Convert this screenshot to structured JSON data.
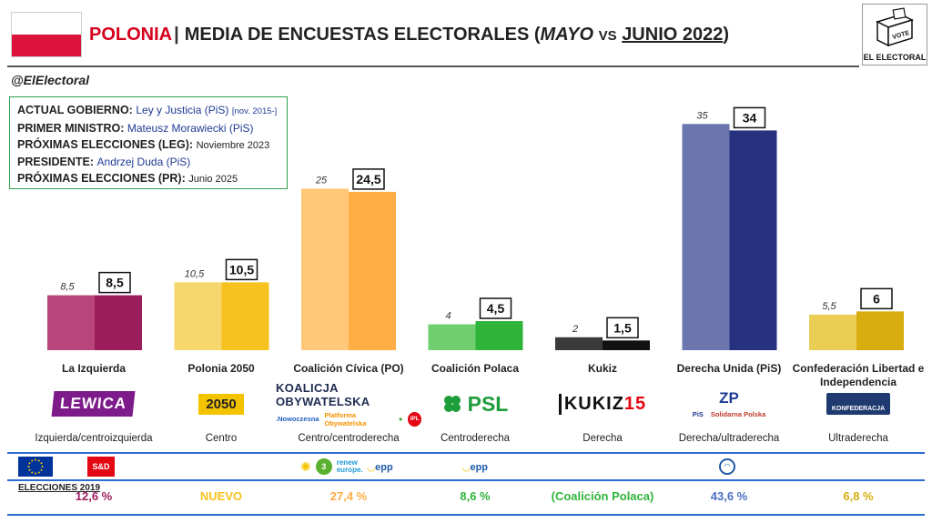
{
  "header": {
    "country": "POLONIA",
    "separator": "|",
    "subject": "MEDIA DE ENCUESTAS ELECTORALES",
    "paren_open": "(",
    "period_a": "MAYO",
    "vs": "VS",
    "period_b": "JUNIO 2022",
    "paren_close": ")"
  },
  "brand": {
    "logo_text": "EL ELECTORAL",
    "ballot_text": "VOTE"
  },
  "handle": "@ElElectoral",
  "info_box": {
    "gobierno_key": "ACTUAL GOBIERNO:",
    "gobierno_val": "Ley y Justicia (PiS)",
    "gobierno_note": "[nov. 2015-]",
    "ministro_key": "PRIMER MINISTRO:",
    "ministro_val": "Mateusz Morawiecki (PiS)",
    "leg_key": "PRÓXIMAS ELECCIONES (LEG):",
    "leg_val": "Noviembre 2023",
    "presidente_key": "PRESIDENTE:",
    "presidente_val": "Andrzej Duda (PiS)",
    "pr_key": "PRÓXIMAS ELECCIONES (PR):",
    "pr_val": "Junio 2025"
  },
  "chart_data": {
    "type": "bar",
    "categories": [
      "La Izquierda",
      "Polonia 2050",
      "Coalición Cívica (PO)",
      "Coalición Polaca",
      "Kukiz",
      "Derecha Unida (PiS)",
      "Confederación Libertad e Independencia"
    ],
    "series": [
      {
        "values": [
          8.5,
          10.5,
          25,
          4,
          2,
          35,
          5.5
        ],
        "labels": [
          "8,5",
          "10,5",
          "25",
          "4",
          "2",
          "35",
          "5,5"
        ]
      },
      {
        "values": [
          8.5,
          10.5,
          24.5,
          4.5,
          1.5,
          34,
          6
        ],
        "labels": [
          "8,5",
          "10,5",
          "24,5",
          "4,5",
          "1,5",
          "34",
          "6"
        ]
      }
    ],
    "colors_prev": [
      "#b9467a",
      "#f8d66e",
      "#ffc778",
      "#6fcf6f",
      "#3a3a3a",
      "#6a76ad",
      "#e9cd55"
    ],
    "colors_curr": [
      "#9b1d5c",
      "#f7c21f",
      "#ffad45",
      "#2fb43a",
      "#111111",
      "#26327f",
      "#d8ad10"
    ],
    "ylim": [
      0,
      38
    ]
  },
  "parties": [
    {
      "name": "La Izquierda",
      "ideology": "Izquierda/centroizquierda",
      "e2019": "12,6 %",
      "e2019_color": "#9b1d5c"
    },
    {
      "name": "Polonia 2050",
      "ideology": "Centro",
      "e2019": "NUEVO",
      "e2019_color": "#f7c21f"
    },
    {
      "name": "Coalición Cívica (PO)",
      "ideology": "Centro/centroderecha",
      "e2019": "27,4 %",
      "e2019_color": "#ffad45"
    },
    {
      "name": "Coalición Polaca",
      "ideology": "Centroderecha",
      "e2019": "8,6 %",
      "e2019_color": "#2fb43a"
    },
    {
      "name": "Kukiz",
      "ideology": "Derecha",
      "e2019": "(Coalición Polaca)",
      "e2019_color": "#2fb43a"
    },
    {
      "name": "Derecha Unida (PiS)",
      "ideology": "Derecha/ultraderecha",
      "e2019": "43,6 %",
      "e2019_color": "#4a6fc1"
    },
    {
      "name": "Confederación Libertad e Independencia",
      "ideology": "Ultraderecha",
      "e2019": "6,8 %",
      "e2019_color": "#d8ad10"
    }
  ],
  "party_logos": {
    "lewica": "LEWICA",
    "p2050": "2050",
    "ko_main": "KOALICJA OBYWATELSKA",
    "ko_n": ".Nowoczesna",
    "ko_po": "Platforma Obywatelska",
    "ko_ipl": "iPL",
    "psl": "PSL",
    "kukiz": "KUKIZ",
    "kukiz_num": "15",
    "zp": "ZP",
    "zp_pis": "PiS",
    "zp_sp": "Solidarna Polska",
    "konf": "KONFEDERACJA"
  },
  "eu_groups": {
    "sd": "S&D",
    "greens": "3",
    "renew_a": "renew",
    "renew_b": "europe.",
    "epp": "epp"
  },
  "elecciones_label": "ELECCIONES 2019"
}
